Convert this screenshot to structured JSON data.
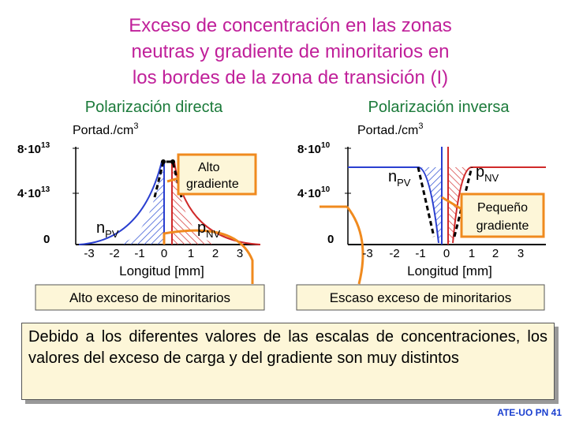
{
  "title": {
    "lines": [
      "Exceso de concentración en las zonas",
      "neutras y gradiente de minoritarios en",
      "los bordes de la zona de transición (I)"
    ]
  },
  "left": {
    "heading": "Polarización directa",
    "unit": {
      "text": "Portad./cm",
      "exp": "3"
    },
    "yticks": [
      {
        "base": "8·10",
        "exp": "13"
      },
      {
        "base": "4·10",
        "exp": "13"
      },
      {
        "base": "0"
      }
    ],
    "xticks": [
      -3,
      -2,
      -1,
      0,
      1,
      2,
      3
    ],
    "xlabel": "Longitud [mm]",
    "minority_n": {
      "base": "n",
      "sub": "PV"
    },
    "minority_p": {
      "base": "p",
      "sub": "NV"
    },
    "callout": [
      "Alto",
      "gradiente"
    ],
    "summary": "Alto exceso de minoritarios"
  },
  "right": {
    "heading": "Polarización inversa",
    "unit": {
      "text": "Portad./cm",
      "exp": "3"
    },
    "yticks": [
      {
        "base": "8·10",
        "exp": "10"
      },
      {
        "base": "4·10",
        "exp": "10"
      },
      {
        "base": "0"
      }
    ],
    "xticks": [
      -3,
      -2,
      -1,
      0,
      1,
      2,
      3
    ],
    "xlabel": "Longitud [mm]",
    "minority_n": {
      "base": "n",
      "sub": "PV"
    },
    "minority_p": {
      "base": "p",
      "sub": "NV"
    },
    "callout": [
      "Pequeño",
      "gradiente"
    ],
    "summary": "Escaso exceso de minoritarios"
  },
  "note": "Debido a los diferentes valores de las escalas de concentraciones, los valores del exceso de carga y del gradiente son muy distintos",
  "footer": "ATE-UO PN 41"
}
